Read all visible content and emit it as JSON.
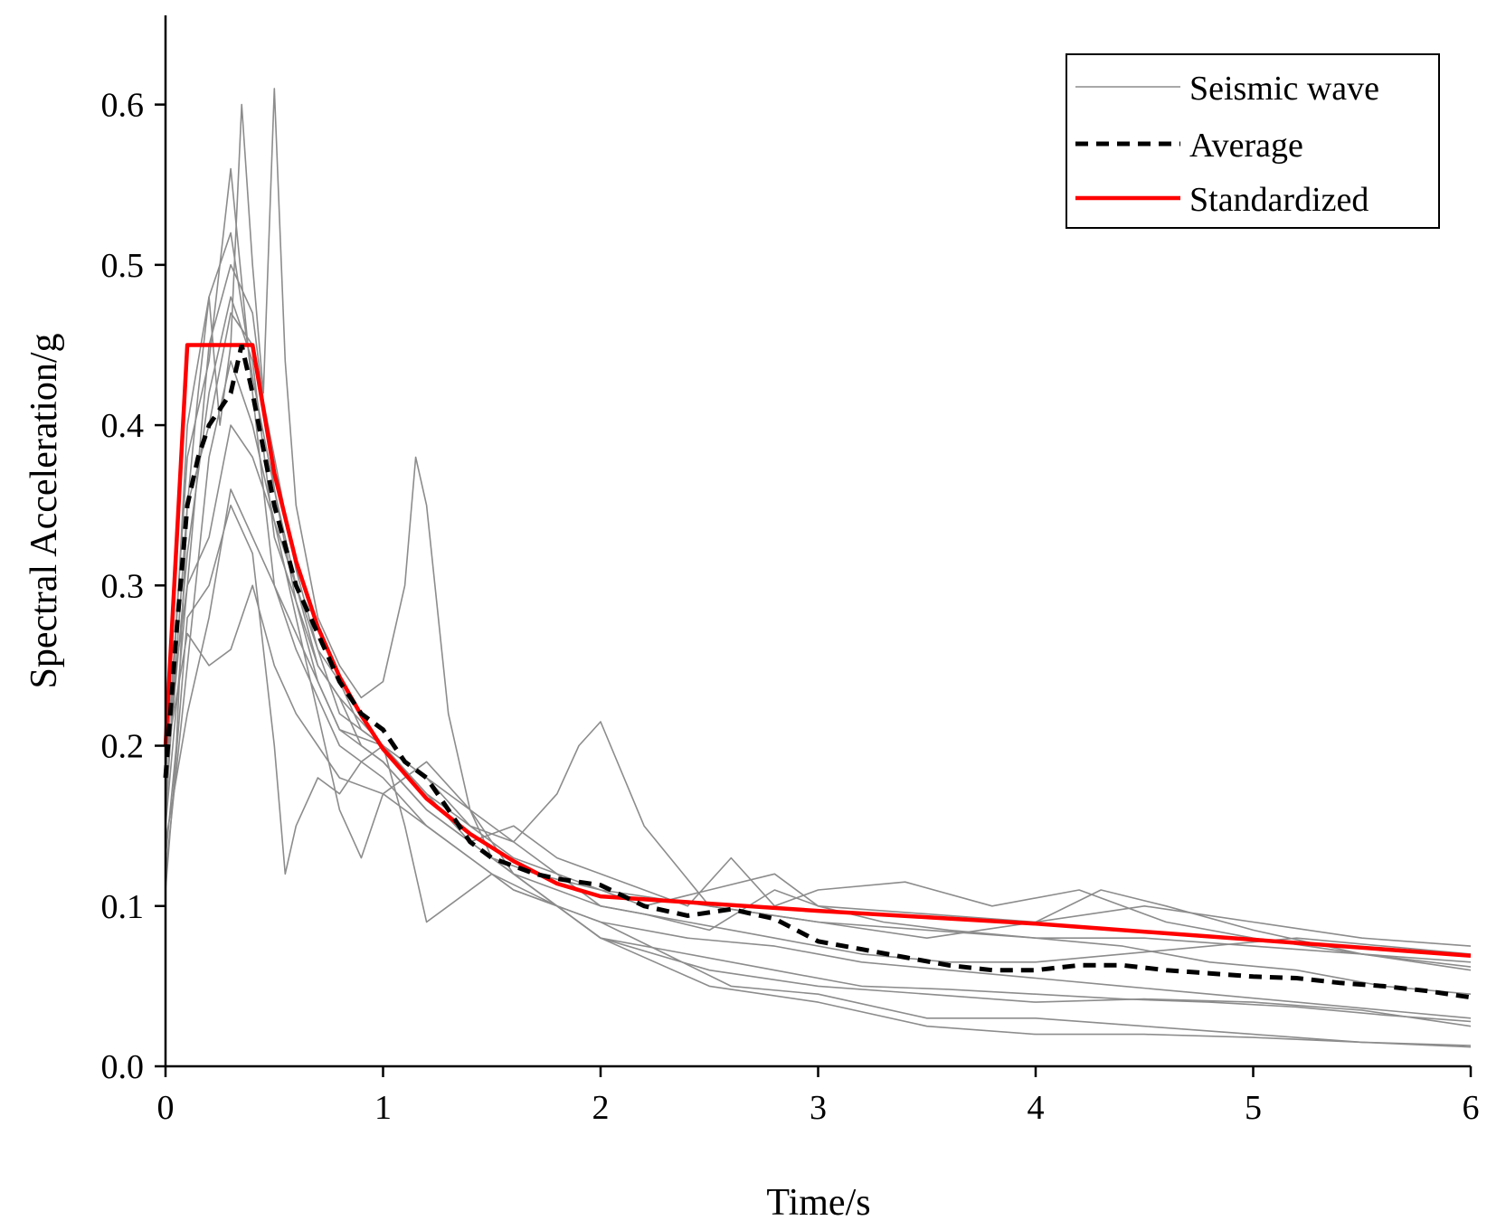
{
  "colors": {
    "seismic": "#8c8c8c",
    "average": "#000000",
    "standardized": "#ff0000",
    "axis": "#000000",
    "background": "#ffffff"
  },
  "chart_data": {
    "type": "line",
    "title": "",
    "xlabel": "Time/s",
    "ylabel": "Spectral Acceleration/g",
    "xlim": [
      0,
      6
    ],
    "ylim": [
      0,
      0.65
    ],
    "x_ticks": [
      "0",
      "1",
      "2",
      "3",
      "4",
      "5",
      "6"
    ],
    "x_tick_values": [
      0,
      1,
      2,
      3,
      4,
      5,
      6
    ],
    "y_ticks": [
      "0.0",
      "0.1",
      "0.2",
      "0.3",
      "0.4",
      "0.5",
      "0.6"
    ],
    "y_tick_values": [
      0,
      0.1,
      0.2,
      0.3,
      0.4,
      0.5,
      0.6
    ],
    "grid": false,
    "legend_position": "top-right",
    "legend": [
      "Seismic wave",
      "Average",
      "Standardized"
    ],
    "standardized": {
      "name": "Standardized",
      "x": [
        0,
        0.1,
        0.4,
        0.5,
        0.6,
        0.7,
        0.8,
        0.9,
        1.0,
        1.2,
        1.4,
        1.6,
        1.8,
        2.0,
        3.0,
        4.0,
        5.0,
        6.0
      ],
      "y": [
        0.2,
        0.45,
        0.45,
        0.37,
        0.315,
        0.274,
        0.243,
        0.219,
        0.198,
        0.167,
        0.145,
        0.128,
        0.114,
        0.106,
        0.097,
        0.089,
        0.079,
        0.069
      ]
    },
    "average": {
      "name": "Average",
      "x": [
        0,
        0.05,
        0.1,
        0.15,
        0.2,
        0.25,
        0.3,
        0.35,
        0.4,
        0.5,
        0.6,
        0.7,
        0.8,
        0.9,
        1.0,
        1.1,
        1.2,
        1.3,
        1.4,
        1.5,
        1.6,
        1.7,
        1.8,
        1.9,
        2.0,
        2.2,
        2.4,
        2.6,
        2.8,
        3.0,
        3.2,
        3.4,
        3.6,
        3.8,
        4.0,
        4.2,
        4.4,
        4.6,
        4.8,
        5.0,
        5.2,
        5.4,
        5.6,
        5.8,
        6.0
      ],
      "y": [
        0.18,
        0.27,
        0.35,
        0.38,
        0.4,
        0.41,
        0.42,
        0.45,
        0.42,
        0.35,
        0.3,
        0.27,
        0.24,
        0.22,
        0.21,
        0.19,
        0.18,
        0.16,
        0.14,
        0.13,
        0.125,
        0.12,
        0.117,
        0.115,
        0.113,
        0.1,
        0.094,
        0.098,
        0.092,
        0.078,
        0.073,
        0.068,
        0.063,
        0.06,
        0.06,
        0.063,
        0.063,
        0.06,
        0.058,
        0.056,
        0.055,
        0.052,
        0.05,
        0.047,
        0.043
      ]
    },
    "seismic_waves": [
      {
        "x": [
          0,
          0.05,
          0.1,
          0.15,
          0.2,
          0.25,
          0.3,
          0.35,
          0.4,
          0.45,
          0.5,
          0.55,
          0.6,
          0.7,
          0.8,
          0.9,
          1.0,
          1.1,
          1.15,
          1.2,
          1.3,
          1.4,
          1.5,
          1.7,
          2.0,
          2.5,
          3.0,
          3.5,
          4.0,
          4.5,
          5.0,
          5.5,
          6.0
        ],
        "y": [
          0.13,
          0.2,
          0.35,
          0.42,
          0.48,
          0.4,
          0.45,
          0.6,
          0.5,
          0.42,
          0.61,
          0.44,
          0.35,
          0.28,
          0.25,
          0.23,
          0.24,
          0.3,
          0.38,
          0.35,
          0.22,
          0.16,
          0.13,
          0.12,
          0.11,
          0.1,
          0.09,
          0.085,
          0.08,
          0.08,
          0.075,
          0.07,
          0.065
        ]
      },
      {
        "x": [
          0,
          0.1,
          0.2,
          0.3,
          0.4,
          0.5,
          0.6,
          0.7,
          0.8,
          0.9,
          1.0,
          1.2,
          1.4,
          1.6,
          1.8,
          1.9,
          2.0,
          2.2,
          2.5,
          3.0,
          3.5,
          4.0,
          4.5,
          5.0,
          5.5,
          6.0
        ],
        "y": [
          0.15,
          0.3,
          0.45,
          0.5,
          0.47,
          0.36,
          0.3,
          0.26,
          0.24,
          0.21,
          0.2,
          0.17,
          0.15,
          0.14,
          0.17,
          0.2,
          0.215,
          0.15,
          0.1,
          0.09,
          0.08,
          0.09,
          0.1,
          0.09,
          0.08,
          0.075
        ]
      },
      {
        "x": [
          0,
          0.1,
          0.2,
          0.3,
          0.4,
          0.5,
          0.6,
          0.7,
          0.8,
          0.9,
          1.0,
          1.2,
          1.4,
          1.6,
          1.8,
          2.0,
          2.5,
          3.0,
          3.5,
          4.0,
          4.5,
          5.0,
          5.5,
          6.0
        ],
        "y": [
          0.12,
          0.25,
          0.38,
          0.44,
          0.4,
          0.34,
          0.28,
          0.22,
          0.16,
          0.13,
          0.17,
          0.19,
          0.16,
          0.12,
          0.1,
          0.08,
          0.06,
          0.05,
          0.045,
          0.04,
          0.042,
          0.04,
          0.035,
          0.025
        ]
      },
      {
        "x": [
          0,
          0.1,
          0.2,
          0.3,
          0.4,
          0.5,
          0.55,
          0.6,
          0.7,
          0.8,
          0.9,
          1.0,
          1.1,
          1.2,
          1.3,
          1.5,
          1.8,
          2.0,
          2.5,
          3.0,
          3.5,
          4.0,
          4.5,
          5.0,
          5.5,
          6.0
        ],
        "y": [
          0.11,
          0.28,
          0.3,
          0.35,
          0.32,
          0.2,
          0.12,
          0.15,
          0.18,
          0.17,
          0.19,
          0.2,
          0.15,
          0.09,
          0.1,
          0.12,
          0.1,
          0.08,
          0.05,
          0.04,
          0.025,
          0.02,
          0.02,
          0.018,
          0.015,
          0.013
        ]
      },
      {
        "x": [
          0,
          0.1,
          0.2,
          0.3,
          0.4,
          0.5,
          0.6,
          0.7,
          0.8,
          0.9,
          1.0,
          1.2,
          1.4,
          1.6,
          1.8,
          2.0,
          2.2,
          2.4,
          2.6,
          2.8,
          3.0,
          3.4,
          3.8,
          4.2,
          4.6,
          5.0,
          5.5,
          6.0
        ],
        "y": [
          0.17,
          0.32,
          0.42,
          0.48,
          0.44,
          0.33,
          0.29,
          0.25,
          0.23,
          0.2,
          0.19,
          0.16,
          0.14,
          0.15,
          0.13,
          0.12,
          0.11,
          0.1,
          0.13,
          0.1,
          0.11,
          0.115,
          0.1,
          0.11,
          0.09,
          0.08,
          0.07,
          0.06
        ]
      },
      {
        "x": [
          0,
          0.1,
          0.2,
          0.3,
          0.4,
          0.5,
          0.6,
          0.7,
          0.8,
          1.0,
          1.2,
          1.4,
          1.6,
          1.8,
          2.0,
          2.2,
          2.5,
          2.8,
          3.0,
          3.3,
          3.6,
          4.0,
          4.4,
          4.8,
          5.2,
          5.6,
          6.0
        ],
        "y": [
          0.16,
          0.35,
          0.4,
          0.47,
          0.45,
          0.38,
          0.31,
          0.26,
          0.22,
          0.2,
          0.17,
          0.14,
          0.12,
          0.11,
          0.1,
          0.095,
          0.085,
          0.11,
          0.1,
          0.09,
          0.085,
          0.08,
          0.075,
          0.065,
          0.06,
          0.05,
          0.045
        ]
      },
      {
        "x": [
          0,
          0.1,
          0.2,
          0.3,
          0.4,
          0.5,
          0.6,
          0.7,
          0.8,
          1.0,
          1.2,
          1.4,
          1.6,
          1.8,
          2.0,
          2.3,
          2.6,
          3.0,
          3.5,
          4.0,
          4.5,
          5.0,
          5.5,
          6.0
        ],
        "y": [
          0.18,
          0.38,
          0.44,
          0.56,
          0.42,
          0.3,
          0.27,
          0.24,
          0.21,
          0.19,
          0.16,
          0.14,
          0.12,
          0.1,
          0.09,
          0.07,
          0.05,
          0.045,
          0.03,
          0.03,
          0.025,
          0.02,
          0.015,
          0.012
        ]
      },
      {
        "x": [
          0,
          0.1,
          0.2,
          0.3,
          0.4,
          0.5,
          0.6,
          0.7,
          0.8,
          1.0,
          1.2,
          1.4,
          1.6,
          1.8,
          2.0,
          2.2,
          2.5,
          2.8,
          3.0,
          3.5,
          4.0,
          4.3,
          4.6,
          5.0,
          5.5,
          6.0
        ],
        "y": [
          0.2,
          0.3,
          0.33,
          0.4,
          0.38,
          0.34,
          0.3,
          0.25,
          0.23,
          0.2,
          0.18,
          0.15,
          0.13,
          0.12,
          0.11,
          0.1,
          0.11,
          0.12,
          0.1,
          0.095,
          0.09,
          0.11,
          0.1,
          0.085,
          0.07,
          0.062
        ]
      },
      {
        "x": [
          0,
          0.1,
          0.2,
          0.3,
          0.4,
          0.5,
          0.6,
          0.7,
          0.8,
          1.0,
          1.2,
          1.4,
          1.6,
          1.8,
          2.0,
          2.4,
          2.8,
          3.2,
          3.6,
          4.0,
          4.4,
          4.8,
          5.2,
          5.6,
          6.0
        ],
        "y": [
          0.19,
          0.27,
          0.25,
          0.26,
          0.3,
          0.25,
          0.22,
          0.2,
          0.18,
          0.17,
          0.15,
          0.13,
          0.11,
          0.1,
          0.09,
          0.08,
          0.075,
          0.065,
          0.06,
          0.055,
          0.05,
          0.045,
          0.04,
          0.035,
          0.03
        ]
      },
      {
        "x": [
          0,
          0.1,
          0.2,
          0.3,
          0.4,
          0.5,
          0.6,
          0.7,
          0.8,
          1.0,
          1.2,
          1.4,
          1.6,
          1.8,
          2.0,
          2.4,
          2.8,
          3.2,
          3.6,
          4.0,
          4.4,
          4.8,
          5.2,
          5.6,
          6.0
        ],
        "y": [
          0.15,
          0.4,
          0.48,
          0.52,
          0.43,
          0.36,
          0.29,
          0.24,
          0.21,
          0.2,
          0.18,
          0.16,
          0.14,
          0.12,
          0.1,
          0.09,
          0.08,
          0.07,
          0.065,
          0.065,
          0.07,
          0.075,
          0.08,
          0.075,
          0.07
        ]
      },
      {
        "x": [
          0,
          0.1,
          0.2,
          0.3,
          0.4,
          0.5,
          0.6,
          0.7,
          0.8,
          1.0,
          1.2,
          1.4,
          1.6,
          1.8,
          2.0,
          2.4,
          2.8,
          3.2,
          3.6,
          4.0,
          4.4,
          4.8,
          5.2,
          5.6,
          6.0
        ],
        "y": [
          0.14,
          0.22,
          0.28,
          0.36,
          0.33,
          0.3,
          0.26,
          0.23,
          0.2,
          0.18,
          0.15,
          0.13,
          0.11,
          0.1,
          0.08,
          0.07,
          0.06,
          0.05,
          0.048,
          0.045,
          0.042,
          0.04,
          0.037,
          0.032,
          0.028
        ]
      }
    ]
  }
}
